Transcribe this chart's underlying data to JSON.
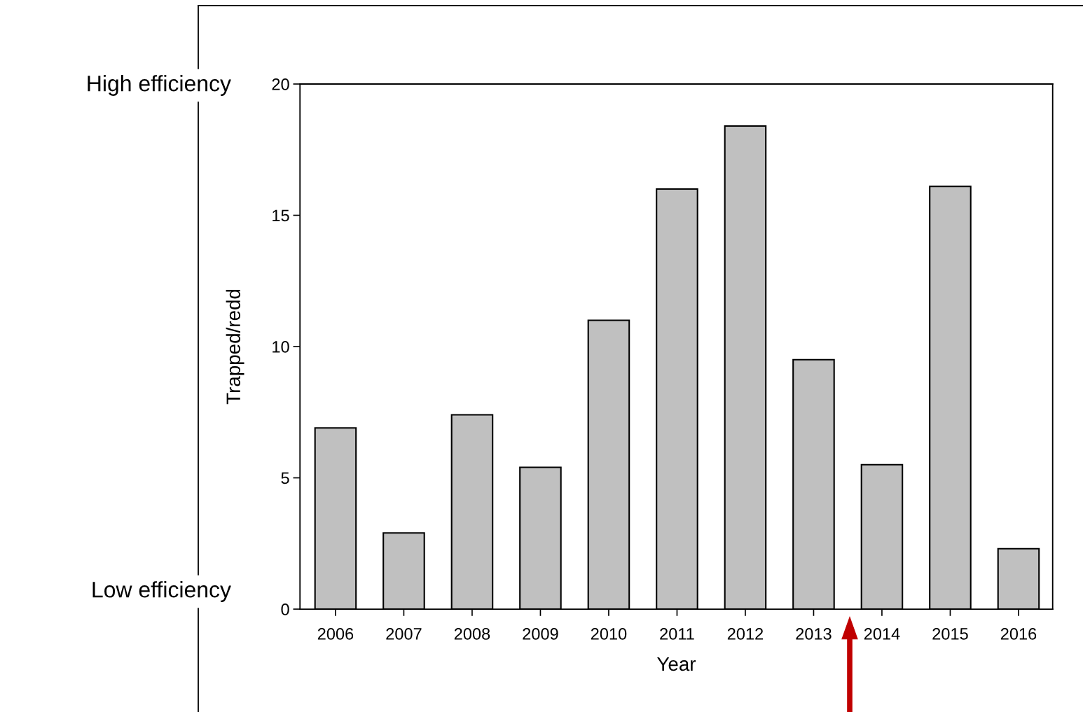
{
  "chart_data": {
    "type": "bar",
    "xlabel": "Year",
    "ylabel": "Trapped/redd",
    "categories": [
      "2006",
      "2007",
      "2008",
      "2009",
      "2010",
      "2011",
      "2012",
      "2013",
      "2014",
      "2015",
      "2016"
    ],
    "values": [
      6.9,
      2.9,
      7.4,
      5.4,
      11.0,
      16.0,
      18.4,
      9.5,
      5.5,
      16.1,
      2.3
    ],
    "color": "#c0c0c0",
    "ylim": [
      0,
      20
    ],
    "yticks": [
      0,
      5,
      10,
      15,
      20
    ],
    "grid": false,
    "annotations": [
      "High efficiency",
      "Low efficiency"
    ]
  }
}
